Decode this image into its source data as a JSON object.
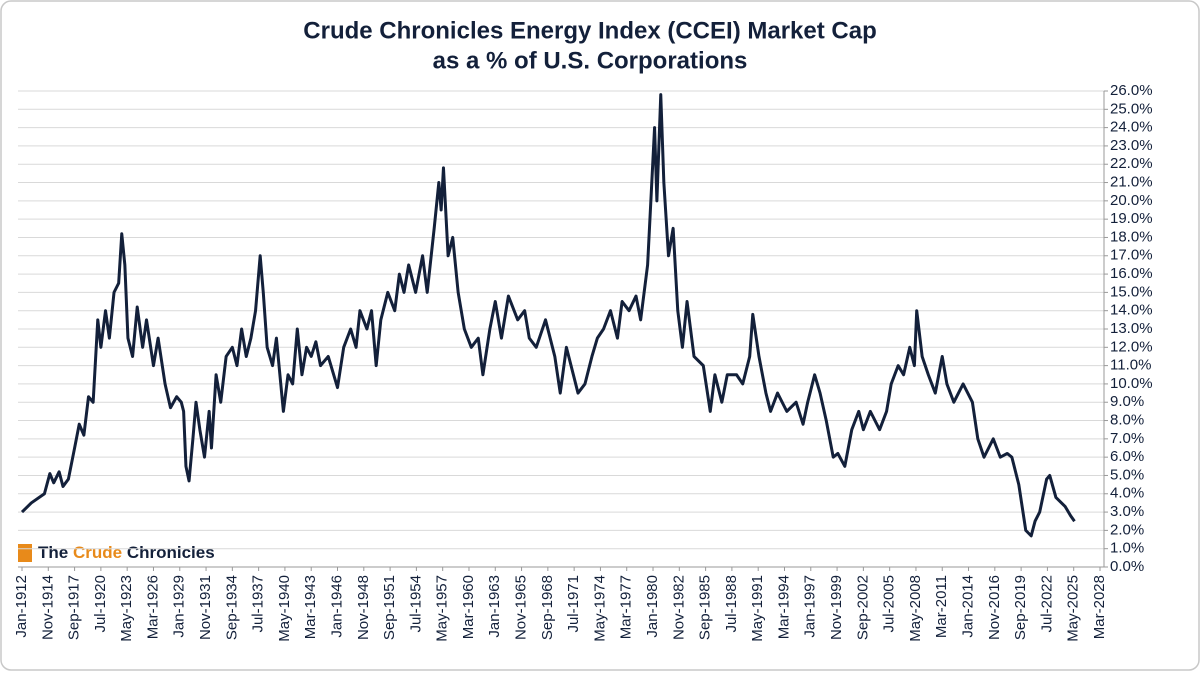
{
  "chart_data": {
    "type": "line",
    "title": "Crude Chronicles Energy Index (CCEI) Market Cap",
    "subtitle": "as a % of U.S. Corporations",
    "logo": [
      "The",
      "Crude",
      "Chronicles"
    ],
    "color": "#13203a",
    "grid": true,
    "xlim": [
      "1912-01",
      "2028-03"
    ],
    "xticks": [
      {
        "value": "1912-01",
        "label": "Jan-1912"
      },
      {
        "value": "1914-11",
        "label": "Nov-1914"
      },
      {
        "value": "1917-09",
        "label": "Sep-1917"
      },
      {
        "value": "1920-07",
        "label": "Jul-1920"
      },
      {
        "value": "1923-05",
        "label": "May-1923"
      },
      {
        "value": "1926-03",
        "label": "Mar-1926"
      },
      {
        "value": "1929-01",
        "label": "Jan-1929"
      },
      {
        "value": "1931-11",
        "label": "Nov-1931"
      },
      {
        "value": "1934-09",
        "label": "Sep-1934"
      },
      {
        "value": "1937-07",
        "label": "Jul-1937"
      },
      {
        "value": "1940-05",
        "label": "May-1940"
      },
      {
        "value": "1943-03",
        "label": "Mar-1943"
      },
      {
        "value": "1946-01",
        "label": "Jan-1946"
      },
      {
        "value": "1948-11",
        "label": "Nov-1948"
      },
      {
        "value": "1951-09",
        "label": "Sep-1951"
      },
      {
        "value": "1954-07",
        "label": "Jul-1954"
      },
      {
        "value": "1957-05",
        "label": "May-1957"
      },
      {
        "value": "1960-03",
        "label": "Mar-1960"
      },
      {
        "value": "1963-01",
        "label": "Jan-1963"
      },
      {
        "value": "1965-11",
        "label": "Nov-1965"
      },
      {
        "value": "1968-09",
        "label": "Sep-1968"
      },
      {
        "value": "1971-07",
        "label": "Jul-1971"
      },
      {
        "value": "1974-05",
        "label": "May-1974"
      },
      {
        "value": "1977-03",
        "label": "Mar-1977"
      },
      {
        "value": "1980-01",
        "label": "Jan-1980"
      },
      {
        "value": "1982-11",
        "label": "Nov-1982"
      },
      {
        "value": "1985-09",
        "label": "Sep-1985"
      },
      {
        "value": "1988-07",
        "label": "Jul-1988"
      },
      {
        "value": "1991-05",
        "label": "May-1991"
      },
      {
        "value": "1994-03",
        "label": "Mar-1994"
      },
      {
        "value": "1997-01",
        "label": "Jan-1997"
      },
      {
        "value": "1999-11",
        "label": "Nov-1999"
      },
      {
        "value": "2002-09",
        "label": "Sep-2002"
      },
      {
        "value": "2005-07",
        "label": "Jul-2005"
      },
      {
        "value": "2008-05",
        "label": "May-2008"
      },
      {
        "value": "2011-03",
        "label": "Mar-2011"
      },
      {
        "value": "2014-01",
        "label": "Jan-2014"
      },
      {
        "value": "2016-11",
        "label": "Nov-2016"
      },
      {
        "value": "2019-09",
        "label": "Sep-2019"
      },
      {
        "value": "2022-07",
        "label": "Jul-2022"
      },
      {
        "value": "2025-05",
        "label": "May-2025"
      },
      {
        "value": "2028-03",
        "label": "Mar-2028"
      }
    ],
    "ylim": [
      0,
      26
    ],
    "yticks": [
      {
        "value": 0,
        "label": "0.0%"
      },
      {
        "value": 1,
        "label": "1.0%"
      },
      {
        "value": 2,
        "label": "2.0%"
      },
      {
        "value": 3,
        "label": "3.0%"
      },
      {
        "value": 4,
        "label": "4.0%"
      },
      {
        "value": 5,
        "label": "5.0%"
      },
      {
        "value": 6,
        "label": "6.0%"
      },
      {
        "value": 7,
        "label": "7.0%"
      },
      {
        "value": 8,
        "label": "8.0%"
      },
      {
        "value": 9,
        "label": "9.0%"
      },
      {
        "value": 10,
        "label": "10.0%"
      },
      {
        "value": 11,
        "label": "11.0%"
      },
      {
        "value": 12,
        "label": "12.0%"
      },
      {
        "value": 13,
        "label": "13.0%"
      },
      {
        "value": 14,
        "label": "14.0%"
      },
      {
        "value": 15,
        "label": "15.0%"
      },
      {
        "value": 16,
        "label": "16.0%"
      },
      {
        "value": 17,
        "label": "17.0%"
      },
      {
        "value": 18,
        "label": "18.0%"
      },
      {
        "value": 19,
        "label": "19.0%"
      },
      {
        "value": 20,
        "label": "20.0%"
      },
      {
        "value": 21,
        "label": "21.0%"
      },
      {
        "value": 22,
        "label": "22.0%"
      },
      {
        "value": 23,
        "label": "23.0%"
      },
      {
        "value": 24,
        "label": "24.0%"
      },
      {
        "value": 25,
        "label": "25.0%"
      },
      {
        "value": 26,
        "label": "26.0%"
      }
    ],
    "x": [
      "1912-01",
      "1913-01",
      "1914-06",
      "1915-01",
      "1915-06",
      "1916-01",
      "1916-06",
      "1917-01",
      "1917-09",
      "1918-03",
      "1918-09",
      "1919-03",
      "1919-09",
      "1920-03",
      "1920-07",
      "1921-01",
      "1921-06",
      "1921-12",
      "1922-06",
      "1922-10",
      "1923-02",
      "1923-06",
      "1923-12",
      "1924-06",
      "1925-01",
      "1925-06",
      "1926-03",
      "1926-09",
      "1927-06",
      "1928-01",
      "1928-09",
      "1929-03",
      "1929-06",
      "1929-09",
      "1930-01",
      "1930-06",
      "1930-10",
      "1931-03",
      "1931-09",
      "1932-03",
      "1932-06",
      "1932-12",
      "1933-06",
      "1934-01",
      "1934-09",
      "1935-03",
      "1935-09",
      "1936-03",
      "1936-09",
      "1937-03",
      "1937-09",
      "1938-01",
      "1938-06",
      "1939-01",
      "1939-06",
      "1940-03",
      "1940-09",
      "1941-03",
      "1941-09",
      "1942-03",
      "1942-09",
      "1943-03",
      "1943-09",
      "1944-03",
      "1945-01",
      "1946-01",
      "1946-09",
      "1947-06",
      "1948-01",
      "1948-06",
      "1949-03",
      "1949-09",
      "1950-03",
      "1950-09",
      "1951-06",
      "1952-03",
      "1952-09",
      "1953-03",
      "1953-09",
      "1954-06",
      "1955-03",
      "1955-09",
      "1956-06",
      "1956-12",
      "1957-03",
      "1957-06",
      "1957-12",
      "1958-06",
      "1959-01",
      "1959-09",
      "1960-06",
      "1961-03",
      "1961-09",
      "1962-06",
      "1963-01",
      "1963-09",
      "1964-06",
      "1965-06",
      "1966-03",
      "1966-09",
      "1967-06",
      "1968-06",
      "1969-06",
      "1970-01",
      "1970-09",
      "1971-06",
      "1971-12",
      "1972-09",
      "1973-06",
      "1974-01",
      "1974-09",
      "1975-06",
      "1976-03",
      "1976-09",
      "1977-06",
      "1978-03",
      "1978-09",
      "1979-06",
      "1980-03",
      "1980-06",
      "1980-11",
      "1981-03",
      "1981-09",
      "1982-03",
      "1982-09",
      "1983-03",
      "1983-09",
      "1984-06",
      "1985-06",
      "1986-03",
      "1986-09",
      "1987-06",
      "1988-01",
      "1989-01",
      "1989-09",
      "1990-06",
      "1990-10",
      "1991-06",
      "1992-03",
      "1992-09",
      "1993-06",
      "1994-06",
      "1995-06",
      "1996-03",
      "1996-09",
      "1997-06",
      "1998-01",
      "1998-09",
      "1999-06",
      "1999-12",
      "2000-09",
      "2001-06",
      "2002-03",
      "2002-09",
      "2003-06",
      "2004-06",
      "2005-03",
      "2005-09",
      "2006-06",
      "2007-01",
      "2007-09",
      "2008-03",
      "2008-06",
      "2009-01",
      "2009-09",
      "2010-06",
      "2011-03",
      "2011-09",
      "2012-06",
      "2013-06",
      "2014-06",
      "2015-01",
      "2015-09",
      "2016-03",
      "2016-09",
      "2017-06",
      "2018-03",
      "2018-09",
      "2019-06",
      "2020-03",
      "2020-10",
      "2021-03",
      "2021-09",
      "2022-06",
      "2022-10",
      "2023-06",
      "2024-06",
      "2025-01",
      "2025-06"
    ],
    "values": [
      3.0,
      3.5,
      4.0,
      5.1,
      4.6,
      5.2,
      4.4,
      4.8,
      6.5,
      7.8,
      7.2,
      9.3,
      9.0,
      13.5,
      12.0,
      14.0,
      12.5,
      15.0,
      15.5,
      18.2,
      16.5,
      12.5,
      11.5,
      14.2,
      12.0,
      13.5,
      11.0,
      12.5,
      10.0,
      8.7,
      9.3,
      9.0,
      8.5,
      5.5,
      4.7,
      7.0,
      9.0,
      7.5,
      6.0,
      8.5,
      6.5,
      10.5,
      9.0,
      11.5,
      12.0,
      11.0,
      13.0,
      11.5,
      12.5,
      14.0,
      17.0,
      15.0,
      12.0,
      11.0,
      12.5,
      8.5,
      10.5,
      10.0,
      13.0,
      10.5,
      12.0,
      11.5,
      12.3,
      11.0,
      11.5,
      9.8,
      12.0,
      13.0,
      12.0,
      14.0,
      13.0,
      14.0,
      11.0,
      13.5,
      15.0,
      14.0,
      16.0,
      15.0,
      16.5,
      15.0,
      17.0,
      15.0,
      18.5,
      21.0,
      19.5,
      21.8,
      17.0,
      18.0,
      15.0,
      13.0,
      12.0,
      12.5,
      10.5,
      13.0,
      14.5,
      12.5,
      14.8,
      13.5,
      14.0,
      12.5,
      12.0,
      13.5,
      11.5,
      9.5,
      12.0,
      10.5,
      9.5,
      10.0,
      11.5,
      12.5,
      13.0,
      14.0,
      12.5,
      14.5,
      14.0,
      14.8,
      13.5,
      16.5,
      24.0,
      20.0,
      25.8,
      21.0,
      17.0,
      18.5,
      14.0,
      12.0,
      14.5,
      11.5,
      11.0,
      8.5,
      10.5,
      9.0,
      10.5,
      10.5,
      10.0,
      11.5,
      13.8,
      11.5,
      9.5,
      8.5,
      9.5,
      8.5,
      9.0,
      7.8,
      9.0,
      10.5,
      9.5,
      8.0,
      6.0,
      6.2,
      5.5,
      7.5,
      8.5,
      7.5,
      8.5,
      7.5,
      8.5,
      10.0,
      11.0,
      10.5,
      12.0,
      11.0,
      14.0,
      11.5,
      10.5,
      9.5,
      11.5,
      10.0,
      9.0,
      10.0,
      9.0,
      7.0,
      6.0,
      6.5,
      7.0,
      6.0,
      6.2,
      6.0,
      4.5,
      2.0,
      1.7,
      2.5,
      3.0,
      4.8,
      5.0,
      3.8,
      3.3,
      2.8,
      2.5
    ]
  }
}
